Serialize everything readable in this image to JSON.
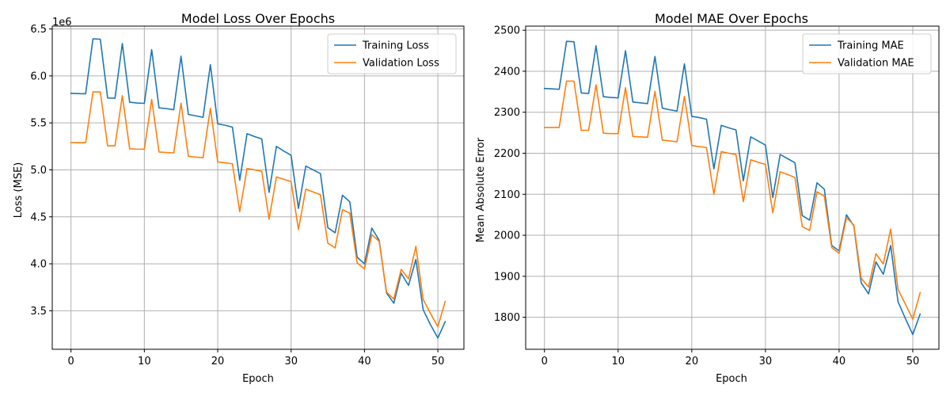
{
  "chart_data": [
    {
      "type": "line",
      "title": "Model Loss Over Epochs",
      "xlabel": "Epoch",
      "ylabel": "Loss (MSE)",
      "y_offset_label": "1e6",
      "xlim": [
        -2.55,
        53.55
      ],
      "ylim": [
        3.09,
        6.53
      ],
      "xticks": [
        0,
        10,
        20,
        30,
        40,
        50
      ],
      "yticks": [
        3.5,
        4.0,
        4.5,
        5.0,
        5.5,
        6.0,
        6.5
      ],
      "ytick_labels": [
        "3.5",
        "4.0",
        "4.5",
        "5.0",
        "5.5",
        "6.0",
        "6.5"
      ],
      "grid": true,
      "legend_position": "top-right",
      "x": [
        0,
        1,
        2,
        3,
        4,
        5,
        6,
        7,
        8,
        9,
        10,
        11,
        12,
        13,
        14,
        15,
        16,
        17,
        18,
        19,
        20,
        21,
        22,
        23,
        24,
        25,
        26,
        27,
        28,
        29,
        30,
        31,
        32,
        33,
        34,
        35,
        36,
        37,
        38,
        39,
        40,
        41,
        42,
        43,
        44,
        45,
        46,
        47,
        48,
        49,
        50,
        51
      ],
      "series": [
        {
          "name": "Training Loss",
          "color": "#1f77b4",
          "values": [
            5.815,
            5.812,
            5.81,
            6.395,
            6.39,
            5.765,
            5.762,
            6.345,
            5.72,
            5.712,
            5.708,
            6.28,
            5.66,
            5.652,
            5.64,
            6.21,
            5.59,
            5.575,
            5.56,
            6.12,
            5.49,
            5.475,
            5.455,
            4.89,
            5.385,
            5.355,
            5.33,
            4.76,
            5.25,
            5.2,
            5.155,
            4.59,
            5.04,
            5.0,
            4.96,
            4.385,
            4.33,
            4.73,
            4.66,
            4.07,
            4.0,
            4.38,
            4.25,
            3.69,
            3.58,
            3.9,
            3.77,
            4.045,
            3.51,
            3.35,
            3.21,
            3.385
          ]
        },
        {
          "name": "Validation Loss",
          "color": "#ff7f0e",
          "values": [
            5.29,
            5.29,
            5.29,
            5.83,
            5.83,
            5.255,
            5.255,
            5.79,
            5.225,
            5.22,
            5.22,
            5.75,
            5.19,
            5.185,
            5.18,
            5.71,
            5.145,
            5.135,
            5.13,
            5.655,
            5.085,
            5.075,
            5.065,
            4.555,
            5.015,
            5.0,
            4.985,
            4.475,
            4.925,
            4.9,
            4.875,
            4.365,
            4.795,
            4.765,
            4.735,
            4.22,
            4.17,
            4.575,
            4.54,
            4.01,
            3.945,
            4.31,
            4.24,
            3.7,
            3.625,
            3.94,
            3.84,
            4.185,
            3.62,
            3.47,
            3.33,
            3.6
          ]
        }
      ]
    },
    {
      "type": "line",
      "title": "Model MAE Over Epochs",
      "xlabel": "Epoch",
      "ylabel": "Mean Absolute Error",
      "xlim": [
        -2.55,
        53.55
      ],
      "ylim": [
        1722,
        2510
      ],
      "xticks": [
        0,
        10,
        20,
        30,
        40,
        50
      ],
      "yticks": [
        1800,
        1900,
        2000,
        2100,
        2200,
        2300,
        2400,
        2500
      ],
      "ytick_labels": [
        "1800",
        "1900",
        "2000",
        "2100",
        "2200",
        "2300",
        "2400",
        "2500"
      ],
      "grid": true,
      "legend_position": "top-right",
      "x": [
        0,
        1,
        2,
        3,
        4,
        5,
        6,
        7,
        8,
        9,
        10,
        11,
        12,
        13,
        14,
        15,
        16,
        17,
        18,
        19,
        20,
        21,
        22,
        23,
        24,
        25,
        26,
        27,
        28,
        29,
        30,
        31,
        32,
        33,
        34,
        35,
        36,
        37,
        38,
        39,
        40,
        41,
        42,
        43,
        44,
        45,
        46,
        47,
        48,
        49,
        50,
        51
      ],
      "series": [
        {
          "name": "Training MAE",
          "color": "#1f77b4",
          "values": [
            2358,
            2357,
            2356,
            2473,
            2472,
            2347,
            2346,
            2462,
            2338,
            2336,
            2335,
            2450,
            2325,
            2323,
            2321,
            2436,
            2310,
            2306,
            2303,
            2418,
            2290,
            2287,
            2283,
            2162,
            2268,
            2262,
            2257,
            2133,
            2240,
            2230,
            2220,
            2092,
            2197,
            2187,
            2177,
            2048,
            2037,
            2128,
            2112,
            1975,
            1962,
            2050,
            2023,
            1884,
            1857,
            1935,
            1905,
            1975,
            1838,
            1797,
            1758,
            1808
          ]
        },
        {
          "name": "Validation MAE",
          "color": "#ff7f0e",
          "values": [
            2263,
            2263,
            2263,
            2376,
            2376,
            2256,
            2256,
            2367,
            2249,
            2248,
            2248,
            2360,
            2241,
            2240,
            2239,
            2351,
            2232,
            2230,
            2228,
            2339,
            2219,
            2216,
            2214,
            2100,
            2204,
            2200,
            2197,
            2082,
            2184,
            2178,
            2173,
            2055,
            2155,
            2148,
            2141,
            2021,
            2012,
            2106,
            2095,
            1970,
            1956,
            2043,
            2025,
            1895,
            1874,
            1955,
            1930,
            2015,
            1868,
            1832,
            1795,
            1860
          ]
        }
      ]
    }
  ]
}
